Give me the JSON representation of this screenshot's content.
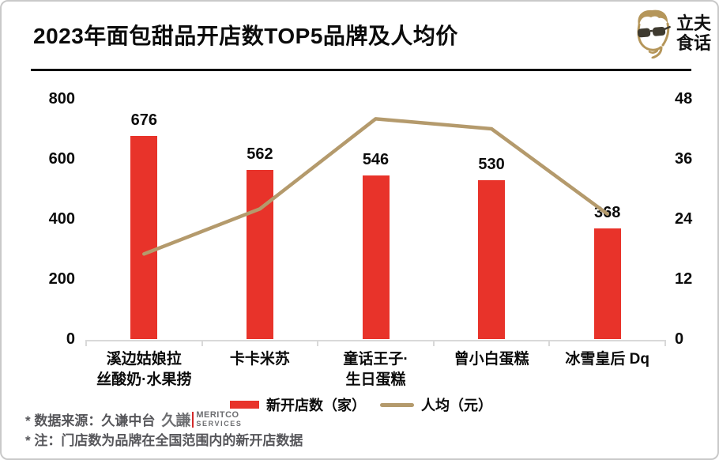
{
  "page": {
    "title_header": "2023年面包甜品开店数TOP5品牌及人均价"
  },
  "brand": {
    "name_line1": "立夫",
    "name_line2": "食话",
    "icon": "man-with-sunglasses-icon"
  },
  "chart_data": {
    "type": "bar+line",
    "title": "2023年面包甜品开店数TOP5品牌及人均价",
    "categories": [
      "溪边姑娘拉\n丝酸奶·水果捞",
      "卡卡米苏",
      "童话王子·\n生日蛋糕",
      "曾小白蛋糕",
      "冰雪皇后 Dq"
    ],
    "series": [
      {
        "name": "新开店数（家）",
        "type": "bar",
        "axis": "left",
        "color": "#E8332A",
        "values": [
          676,
          562,
          546,
          530,
          368
        ]
      },
      {
        "name": "人均（元）",
        "type": "line",
        "axis": "right",
        "color": "#B49A6C",
        "values": [
          17,
          26,
          44,
          42,
          25
        ]
      }
    ],
    "bar_value_labels": [
      "676",
      "562",
      "546",
      "530",
      "368"
    ],
    "left_axis": {
      "min": 0,
      "max": 800,
      "ticks": [
        800,
        600,
        400,
        200,
        0
      ]
    },
    "right_axis": {
      "min": 0,
      "max": 48,
      "ticks": [
        48,
        36,
        24,
        12,
        0
      ]
    },
    "grid": "off",
    "legend_position": "bottom"
  },
  "legend": {
    "bars_label": "新开店数（家）",
    "line_label": "人均（元）"
  },
  "footnotes": {
    "source": "* 数据来源：久谦中台",
    "note": "* 注：门店数为品牌在全国范围内的新开店数据",
    "source_logo": {
      "cjk": "久謙",
      "line1": "MERITCO",
      "line2": "SERVICES"
    }
  },
  "colors": {
    "bar": "#E8332A",
    "line": "#B49A6C",
    "axis_line": "#D9D9D9",
    "footnote_text": "#56565A",
    "brand_tan": "#B5965A",
    "logo_red": "#D22A2A"
  }
}
